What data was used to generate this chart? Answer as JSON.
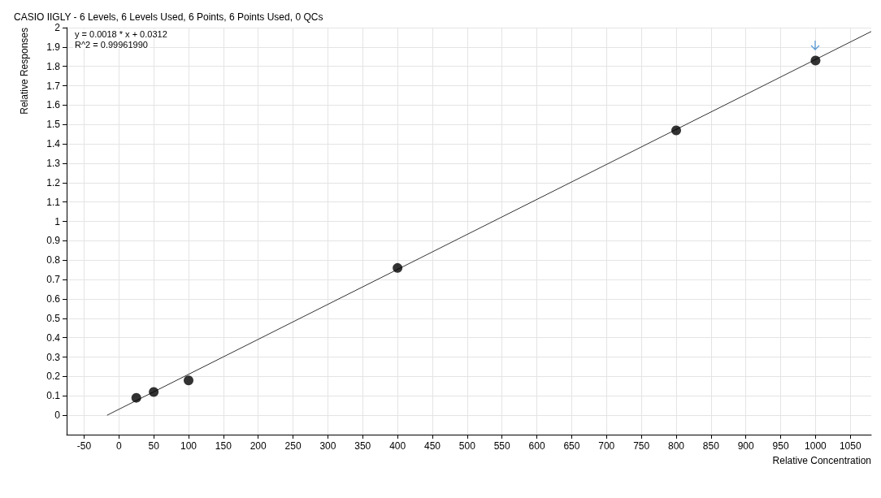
{
  "chart_data": {
    "type": "scatter",
    "title": "CASIO IIGLY - 6 Levels, 6 Levels Used, 6 Points, 6 Points Used, 0 QCs",
    "xlabel": "Relative Concentration",
    "ylabel": "Relative Responses",
    "annotations": [
      "y = 0.0018 * x + 0.0312",
      "R^2 = 0.99961990"
    ],
    "series": [
      {
        "color": "#000000",
        "x": [
          25,
          50,
          100,
          400,
          800,
          1000
        ],
        "values": [
          0.09,
          0.12,
          0.18,
          0.76,
          1.47,
          1.83
        ],
        "marker": "circle"
      },
      {
        "type": "line",
        "color": "#333333",
        "x": [
          -17,
          1080
        ],
        "values": [
          0,
          1.98
        ],
        "marker": "none"
      }
    ],
    "xlim": [
      -75,
      1080
    ],
    "xticks": [
      -50,
      0,
      50,
      100,
      150,
      200,
      250,
      300,
      350,
      400,
      450,
      500,
      550,
      600,
      650,
      700,
      750,
      800,
      850,
      900,
      950,
      1000,
      1050
    ],
    "ylim": [
      -0.1,
      2
    ],
    "yticks": [
      0,
      0.1,
      0.2,
      0.3,
      0.4,
      0.5,
      0.6,
      0.7,
      0.8,
      0.9,
      1,
      1.1,
      1.2,
      1.3,
      1.4,
      1.5,
      1.6,
      1.7,
      1.8,
      1.9,
      2
    ],
    "grid": true
  }
}
